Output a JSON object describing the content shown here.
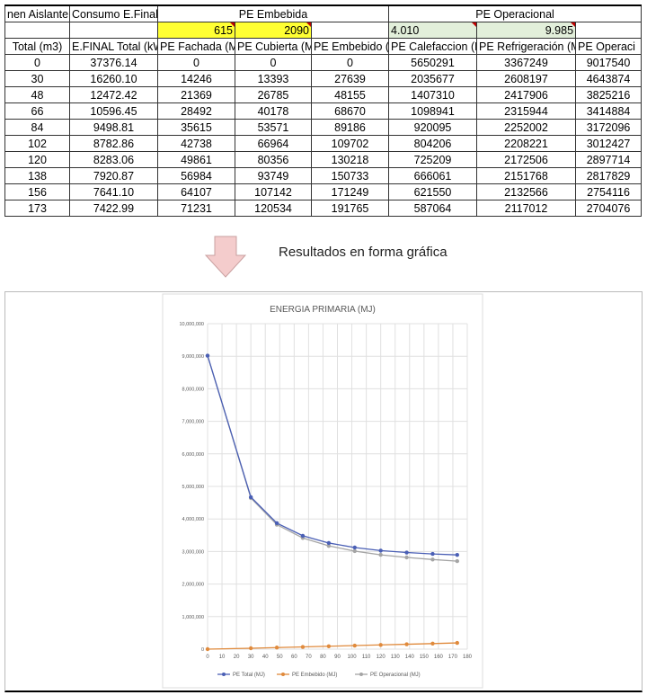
{
  "table": {
    "group_headers": [
      "nen Aislante",
      "Consumo E.Final",
      "PE Embebida",
      "PE Operacional"
    ],
    "factors": {
      "fachada": "615",
      "cubierta": "2090",
      "calefaccion": "4.010",
      "refrigeracion": "9.985"
    },
    "columns": [
      "Total (m3)",
      "E.FINAL Total (kW",
      "PE Fachada (M",
      "PE Cubierta (M",
      "PE Embebido (",
      "PE Calefaccion (M",
      "PE Refrigeración (M",
      "PE Operaci"
    ],
    "rows": [
      [
        "0",
        "37376.14",
        "0",
        "0",
        "0",
        "5650291",
        "3367249",
        "9017540"
      ],
      [
        "30",
        "16260.10",
        "14246",
        "13393",
        "27639",
        "2035677",
        "2608197",
        "4643874"
      ],
      [
        "48",
        "12472.42",
        "21369",
        "26785",
        "48155",
        "1407310",
        "2417906",
        "3825216"
      ],
      [
        "66",
        "10596.45",
        "28492",
        "40178",
        "68670",
        "1098941",
        "2315944",
        "3414884"
      ],
      [
        "84",
        "9498.81",
        "35615",
        "53571",
        "89186",
        "920095",
        "2252002",
        "3172096"
      ],
      [
        "102",
        "8782.86",
        "42738",
        "66964",
        "109702",
        "804206",
        "2208221",
        "3012427"
      ],
      [
        "120",
        "8283.06",
        "49861",
        "80356",
        "130218",
        "725209",
        "2172506",
        "2897714"
      ],
      [
        "138",
        "7920.87",
        "56984",
        "93749",
        "150733",
        "666061",
        "2151768",
        "2817829"
      ],
      [
        "156",
        "7641.10",
        "64107",
        "107142",
        "171249",
        "621550",
        "2132566",
        "2754116"
      ],
      [
        "173",
        "7422.99",
        "71231",
        "120534",
        "191765",
        "587064",
        "2117012",
        "2704076"
      ]
    ]
  },
  "caption": "Resultados en forma gráfica",
  "chart_data": {
    "type": "line",
    "title": "ENERGIA PRIMARIA (MJ)",
    "x": [
      0,
      30,
      48,
      66,
      84,
      102,
      120,
      138,
      156,
      173
    ],
    "xlim": [
      0,
      180
    ],
    "xticks": [
      0,
      10,
      20,
      30,
      40,
      50,
      60,
      70,
      80,
      90,
      100,
      110,
      120,
      130,
      140,
      150,
      160,
      170,
      180
    ],
    "ylim": [
      0,
      10000000
    ],
    "yticks": [
      "0",
      "1,000,000",
      "2,000,000",
      "3,000,000",
      "4,000,000",
      "5,000,000",
      "6,000,000",
      "7,000,000",
      "8,000,000",
      "9,000,000",
      "10,000,000"
    ],
    "grid": true,
    "legend": "bottom",
    "series": [
      {
        "name": "PE Total (MJ)",
        "color": "#4a5fb5",
        "values": [
          9017540,
          4671513,
          3873371,
          3483554,
          3261282,
          3122129,
          3027932,
          2968562,
          2925365,
          2895841
        ]
      },
      {
        "name": "PE Embebido (MJ)",
        "color": "#e08a3c",
        "values": [
          0,
          27639,
          48155,
          68670,
          89186,
          109702,
          130218,
          150733,
          171249,
          191765
        ]
      },
      {
        "name": "PE Operacional (MJ)",
        "color": "#a5a5a5",
        "values": [
          9017540,
          4643874,
          3825216,
          3414884,
          3172096,
          3012427,
          2897714,
          2817829,
          2754116,
          2704076
        ]
      }
    ]
  }
}
